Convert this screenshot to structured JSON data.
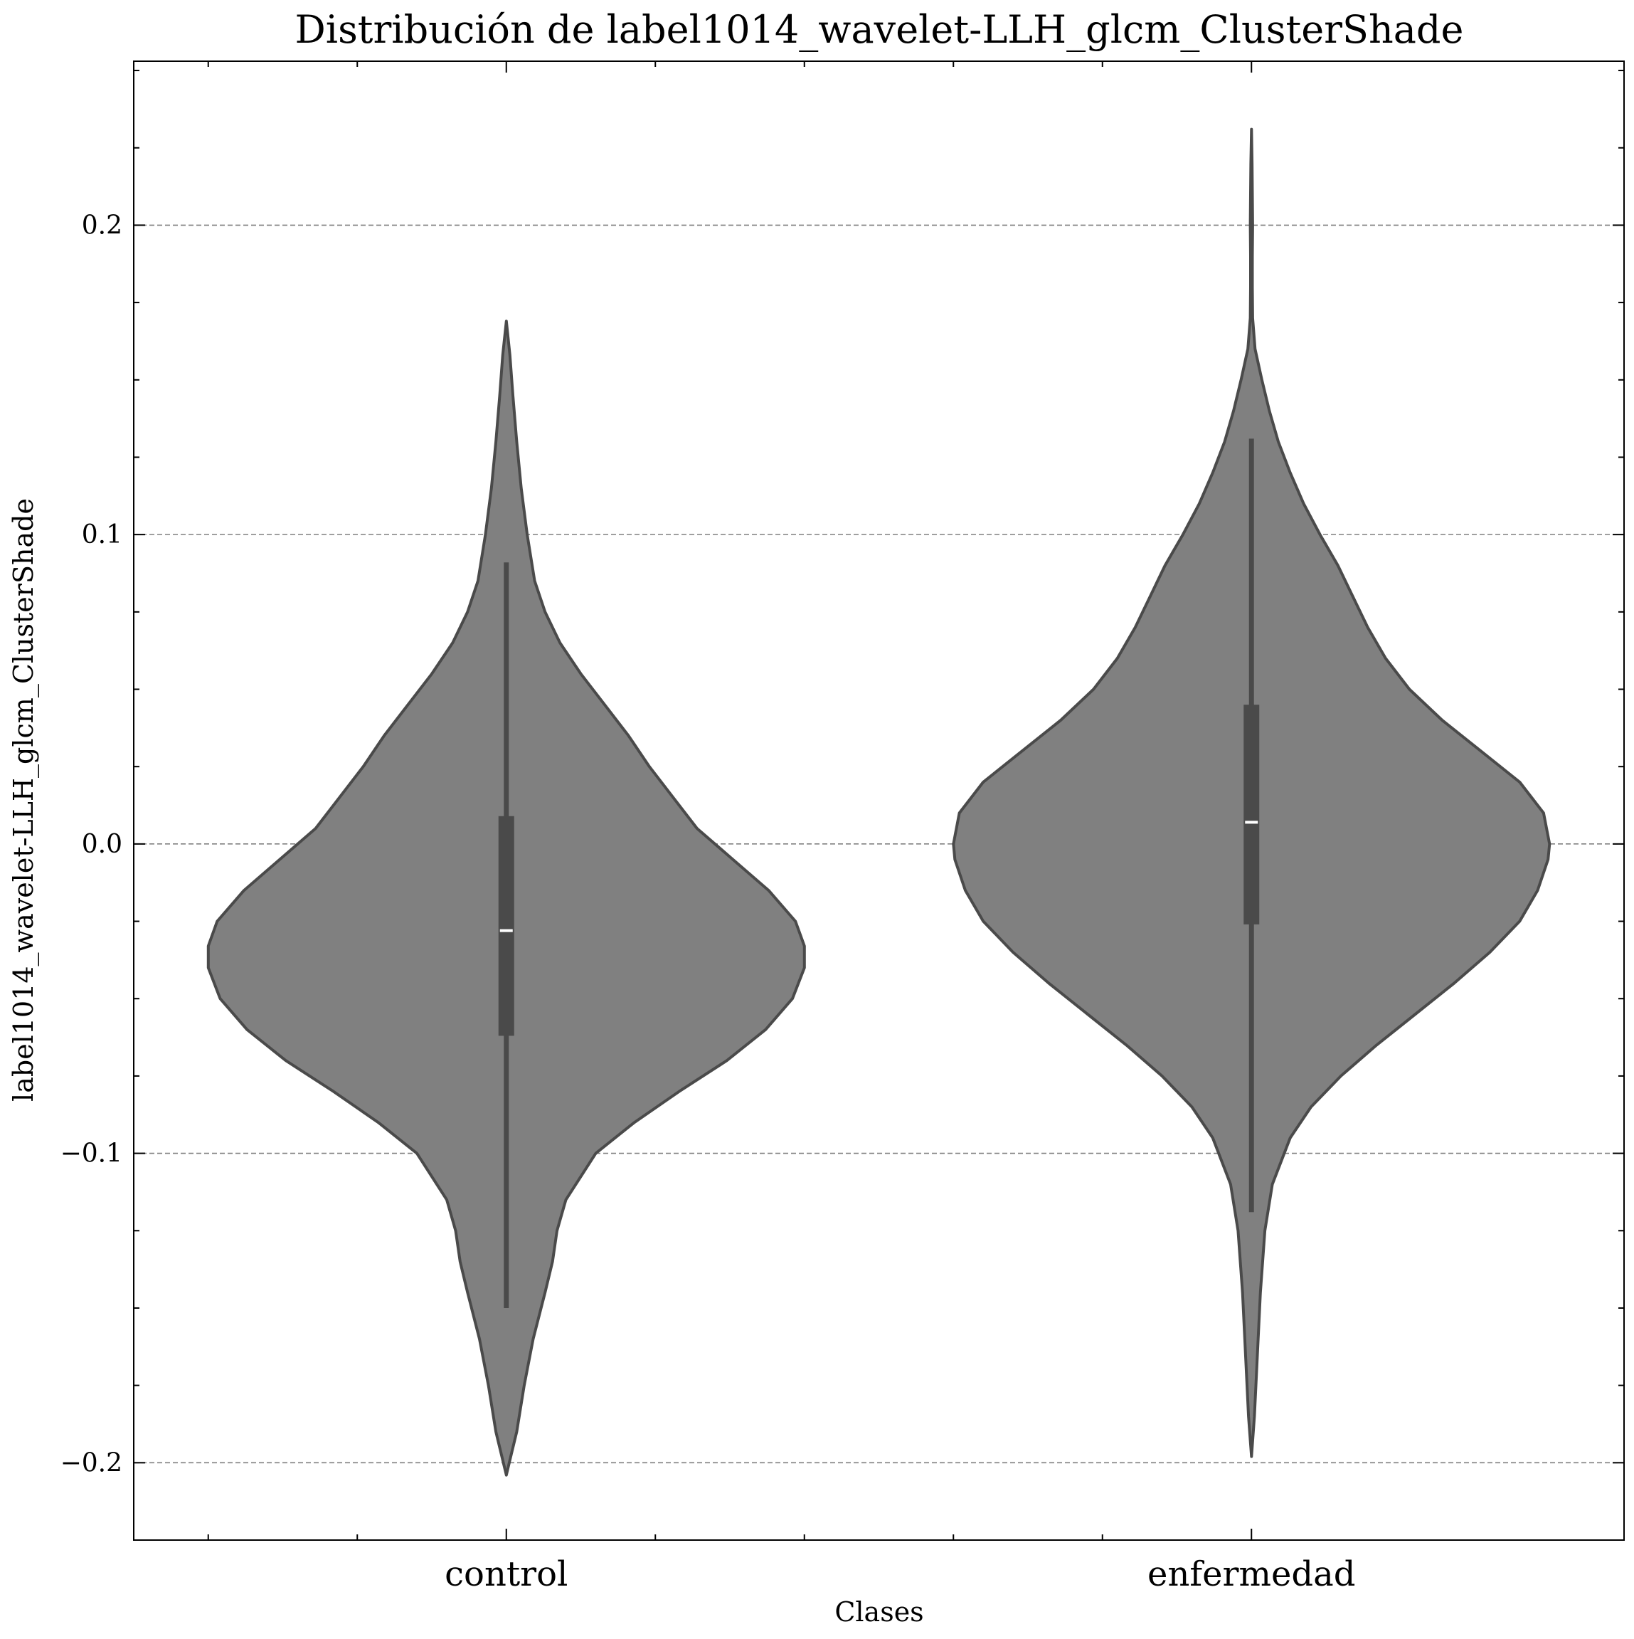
{
  "chart_data": {
    "type": "violin",
    "title": "Distribución de label1014_wavelet-LLH_glcm_ClusterShade",
    "xlabel": "Clases",
    "ylabel": "label1014_wavelet-LLH_glcm_ClusterShade",
    "categories": [
      "control",
      "enfermedad"
    ],
    "ylim": [
      -0.225,
      0.253
    ],
    "yticks": [
      0.2,
      0.1,
      0.0,
      -0.1,
      -0.2
    ],
    "ytick_labels": [
      "0.2",
      "0.1",
      "0.0",
      "−0.1",
      "−0.2"
    ],
    "grid": "horizontal-dashed",
    "violins": [
      {
        "category": "control",
        "min": -0.204,
        "max": 0.169,
        "whisker_low": -0.15,
        "whisker_high": 0.091,
        "q1": -0.062,
        "median": -0.028,
        "q3": 0.009,
        "profile": [
          [
            -0.204,
            0.0
          ],
          [
            -0.2,
            0.01
          ],
          [
            -0.19,
            0.035
          ],
          [
            -0.175,
            0.06
          ],
          [
            -0.16,
            0.09
          ],
          [
            -0.145,
            0.13
          ],
          [
            -0.135,
            0.155
          ],
          [
            -0.125,
            0.17
          ],
          [
            -0.115,
            0.2
          ],
          [
            -0.1,
            0.3
          ],
          [
            -0.09,
            0.43
          ],
          [
            -0.08,
            0.58
          ],
          [
            -0.07,
            0.74
          ],
          [
            -0.06,
            0.87
          ],
          [
            -0.05,
            0.96
          ],
          [
            -0.04,
            1.0
          ],
          [
            -0.033,
            1.0
          ],
          [
            -0.025,
            0.97
          ],
          [
            -0.015,
            0.88
          ],
          [
            -0.005,
            0.76
          ],
          [
            0.005,
            0.64
          ],
          [
            0.015,
            0.56
          ],
          [
            0.025,
            0.48
          ],
          [
            0.035,
            0.41
          ],
          [
            0.045,
            0.33
          ],
          [
            0.055,
            0.25
          ],
          [
            0.065,
            0.18
          ],
          [
            0.075,
            0.13
          ],
          [
            0.085,
            0.095
          ],
          [
            0.1,
            0.07
          ],
          [
            0.115,
            0.05
          ],
          [
            0.13,
            0.035
          ],
          [
            0.145,
            0.022
          ],
          [
            0.158,
            0.012
          ],
          [
            0.169,
            0.0
          ]
        ]
      },
      {
        "category": "enfermedad",
        "min": -0.198,
        "max": 0.231,
        "whisker_low": -0.119,
        "whisker_high": 0.131,
        "q1": -0.026,
        "median": 0.007,
        "q3": 0.045,
        "profile": [
          [
            -0.198,
            0.0
          ],
          [
            -0.185,
            0.01
          ],
          [
            -0.165,
            0.02
          ],
          [
            -0.145,
            0.03
          ],
          [
            -0.125,
            0.045
          ],
          [
            -0.11,
            0.07
          ],
          [
            -0.095,
            0.13
          ],
          [
            -0.085,
            0.2
          ],
          [
            -0.075,
            0.3
          ],
          [
            -0.065,
            0.42
          ],
          [
            -0.055,
            0.55
          ],
          [
            -0.045,
            0.68
          ],
          [
            -0.035,
            0.8
          ],
          [
            -0.025,
            0.9
          ],
          [
            -0.015,
            0.96
          ],
          [
            -0.005,
            0.995
          ],
          [
            0.0,
            1.0
          ],
          [
            0.01,
            0.98
          ],
          [
            0.02,
            0.9
          ],
          [
            0.03,
            0.77
          ],
          [
            0.04,
            0.64
          ],
          [
            0.05,
            0.53
          ],
          [
            0.06,
            0.45
          ],
          [
            0.07,
            0.39
          ],
          [
            0.08,
            0.34
          ],
          [
            0.09,
            0.29
          ],
          [
            0.1,
            0.23
          ],
          [
            0.11,
            0.175
          ],
          [
            0.12,
            0.13
          ],
          [
            0.13,
            0.09
          ],
          [
            0.14,
            0.06
          ],
          [
            0.15,
            0.035
          ],
          [
            0.16,
            0.012
          ],
          [
            0.17,
            0.004
          ],
          [
            0.18,
            0.003
          ],
          [
            0.19,
            0.003
          ],
          [
            0.2,
            0.004
          ],
          [
            0.21,
            0.003
          ],
          [
            0.22,
            0.002
          ],
          [
            0.231,
            0.0
          ]
        ]
      }
    ]
  }
}
